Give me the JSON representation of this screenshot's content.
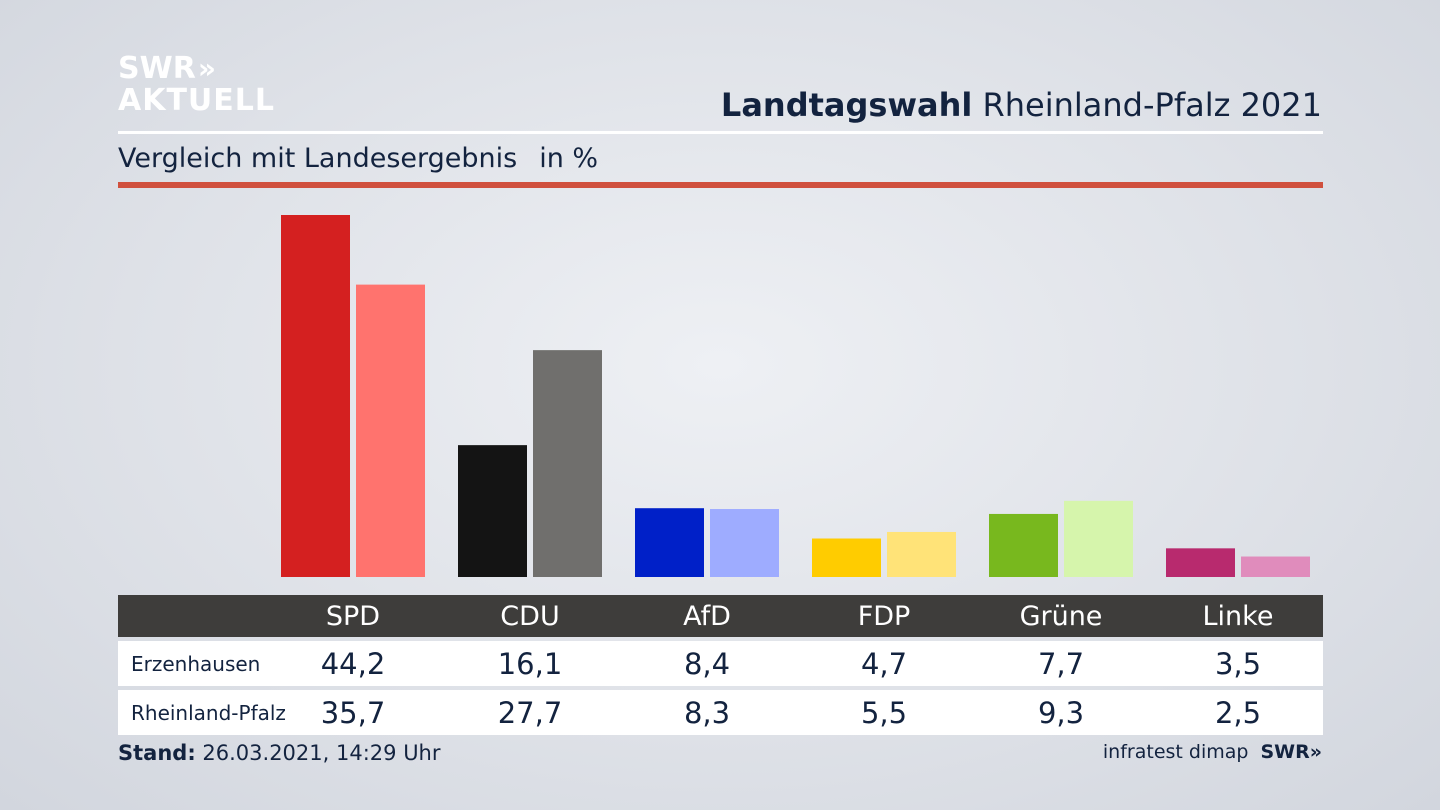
{
  "logo": {
    "line1": "SWR",
    "chevrons": "»",
    "line2": "AKTUELL"
  },
  "header": {
    "title_bold": "Landtagswahl",
    "title_rest": "Rheinland-Pfalz 2021"
  },
  "subtitle": {
    "text": "Vergleich mit Landesergebnis",
    "unit": "in %"
  },
  "footer": {
    "stand_label": "Stand:",
    "stand_value": "26.03.2021, 14:29 Uhr",
    "source": "infratest dimap",
    "brand": "SWR»"
  },
  "chart_data": {
    "type": "bar",
    "categories": [
      "SPD",
      "CDU",
      "AfD",
      "FDP",
      "Grüne",
      "Linke"
    ],
    "series": [
      {
        "name": "Erzenhausen",
        "values": [
          44.2,
          16.1,
          8.4,
          4.7,
          7.7,
          3.5
        ],
        "labels": [
          "44,2",
          "16,1",
          "8,4",
          "4,7",
          "7,7",
          "3,5"
        ]
      },
      {
        "name": "Rheinland-Pfalz",
        "values": [
          35.7,
          27.7,
          8.3,
          5.5,
          9.3,
          2.5
        ],
        "labels": [
          "35,7",
          "27,7",
          "8,3",
          "5,5",
          "9,3",
          "2,5"
        ]
      }
    ],
    "colors": {
      "Erzenhausen": [
        "#d42020",
        "#141414",
        "#0020c8",
        "#ffcc00",
        "#78b81e",
        "#b82a6e"
      ],
      "Rheinland-Pfalz": [
        "#ff736e",
        "#706f6d",
        "#9eacff",
        "#ffe378",
        "#d6f5ac",
        "#e08cbc"
      ]
    },
    "ylim": [
      0,
      44.2
    ],
    "grid": false,
    "legend": "table-below"
  }
}
